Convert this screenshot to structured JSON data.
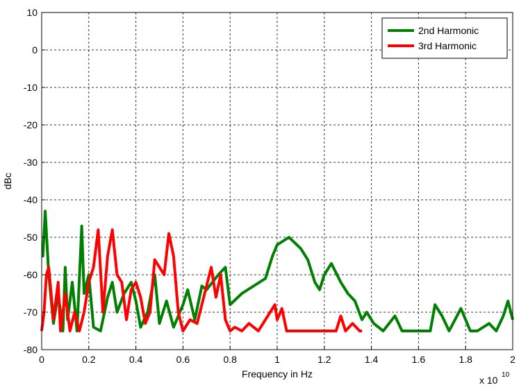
{
  "chart_data": {
    "type": "line",
    "x_label": "Frequency in Hz",
    "y_label": "dBc",
    "x_multiplier": "x 10",
    "x_multiplier_exponent": "10",
    "xlim": [
      0,
      2
    ],
    "ylim": [
      -80,
      10
    ],
    "xticks": [
      0,
      0.2,
      0.4,
      0.6,
      0.8,
      1,
      1.2,
      1.4,
      1.6,
      1.8,
      2
    ],
    "yticks": [
      -80,
      -70,
      -60,
      -50,
      -40,
      -30,
      -20,
      -10,
      0,
      10
    ],
    "grid": true,
    "legend": "upper right",
    "series": [
      {
        "name": "2nd Harmonic",
        "color": "#008000",
        "x": [
          0,
          0.005,
          0.015,
          0.03,
          0.05,
          0.07,
          0.09,
          0.1,
          0.11,
          0.13,
          0.15,
          0.17,
          0.18,
          0.2,
          0.22,
          0.25,
          0.28,
          0.3,
          0.32,
          0.35,
          0.38,
          0.4,
          0.42,
          0.45,
          0.48,
          0.5,
          0.53,
          0.56,
          0.6,
          0.62,
          0.65,
          0.68,
          0.7,
          0.75,
          0.78,
          0.8,
          0.85,
          0.9,
          0.95,
          0.98,
          1.0,
          1.05,
          1.1,
          1.13,
          1.16,
          1.18,
          1.2,
          1.23,
          1.27,
          1.3,
          1.33,
          1.36,
          1.38,
          1.41,
          1.45,
          1.5,
          1.53,
          1.6,
          1.65,
          1.67,
          1.7,
          1.73,
          1.78,
          1.8,
          1.82,
          1.85,
          1.9,
          1.93,
          1.96,
          1.98,
          2.0
        ],
        "values": [
          -55,
          -55,
          -43,
          -60,
          -73,
          -65,
          -75,
          -58,
          -72,
          -62,
          -75,
          -47,
          -65,
          -60,
          -74,
          -75,
          -66,
          -62,
          -70,
          -65,
          -62,
          -67,
          -74,
          -70,
          -60,
          -73,
          -67,
          -74,
          -68,
          -64,
          -72,
          -63,
          -64,
          -60,
          -58,
          -68,
          -65,
          -63,
          -61,
          -55,
          -52,
          -50,
          -53,
          -56,
          -62,
          -64,
          -60,
          -57,
          -62,
          -65,
          -67,
          -72,
          -70,
          -73,
          -75,
          -71,
          -75,
          -75,
          -75,
          -68,
          -71,
          -75,
          -69,
          -72,
          -75,
          -75,
          -73,
          -75,
          -71,
          -67,
          -72
        ]
      },
      {
        "name": "3rd Harmonic",
        "color": "#ff0000",
        "x": [
          0,
          0.01,
          0.02,
          0.03,
          0.05,
          0.07,
          0.08,
          0.1,
          0.12,
          0.14,
          0.16,
          0.18,
          0.2,
          0.22,
          0.24,
          0.26,
          0.28,
          0.3,
          0.32,
          0.34,
          0.36,
          0.38,
          0.4,
          0.42,
          0.44,
          0.46,
          0.48,
          0.5,
          0.52,
          0.54,
          0.56,
          0.58,
          0.6,
          0.63,
          0.66,
          0.68,
          0.7,
          0.72,
          0.74,
          0.76,
          0.78,
          0.8,
          0.82,
          0.85,
          0.88,
          0.92,
          0.97,
          0.99,
          1.0,
          1.02,
          1.04,
          1.1,
          1.2,
          1.25,
          1.27,
          1.29,
          1.32,
          1.35,
          1.36
        ],
        "values": [
          -75,
          -70,
          -60,
          -58,
          -72,
          -62,
          -75,
          -65,
          -75,
          -70,
          -75,
          -70,
          -62,
          -58,
          -48,
          -70,
          -55,
          -48,
          -60,
          -62,
          -72,
          -64,
          -62,
          -66,
          -73,
          -70,
          -56,
          -58,
          -60,
          -49,
          -55,
          -70,
          -75,
          -72,
          -73,
          -68,
          -63,
          -58,
          -66,
          -60,
          -72,
          -75,
          -74,
          -75,
          -73,
          -75,
          -70,
          -68,
          -72,
          -69,
          -75,
          -75,
          -75,
          -75,
          -71,
          -75,
          -73,
          -75,
          -75
        ]
      }
    ]
  }
}
